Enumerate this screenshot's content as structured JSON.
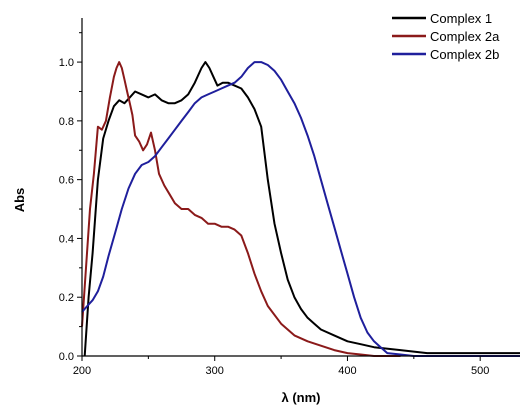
{
  "chart_data": {
    "type": "line",
    "title": "",
    "xlabel": "λ (nm)",
    "ylabel": "Abs",
    "xlim": [
      200,
      530
    ],
    "ylim": [
      0,
      1.15
    ],
    "x_ticks": [
      200,
      300,
      400,
      500
    ],
    "x_tick_labels": [
      "200",
      "300",
      "400",
      "500"
    ],
    "y_ticks": [
      0.0,
      0.2,
      0.4,
      0.6,
      0.8,
      1.0
    ],
    "y_tick_labels": [
      "0.0",
      "0.2",
      "0.4",
      "0.6",
      "0.8",
      "1.0"
    ],
    "grid": false,
    "legend_position": "top-right",
    "series": [
      {
        "name": "Complex 1",
        "color": "#000000",
        "x": [
          202,
          205,
          208,
          212,
          216,
          220,
          224,
          228,
          232,
          236,
          240,
          245,
          250,
          255,
          260,
          265,
          270,
          275,
          280,
          285,
          290,
          293,
          296,
          299,
          302,
          306,
          310,
          315,
          320,
          325,
          330,
          335,
          340,
          345,
          350,
          355,
          360,
          365,
          370,
          375,
          380,
          390,
          400,
          410,
          420,
          440,
          460,
          480,
          500,
          520,
          530
        ],
        "y": [
          0.0,
          0.2,
          0.35,
          0.6,
          0.74,
          0.8,
          0.85,
          0.87,
          0.86,
          0.88,
          0.9,
          0.89,
          0.88,
          0.89,
          0.87,
          0.86,
          0.86,
          0.87,
          0.89,
          0.93,
          0.98,
          1.0,
          0.98,
          0.95,
          0.92,
          0.93,
          0.93,
          0.92,
          0.91,
          0.88,
          0.84,
          0.78,
          0.6,
          0.45,
          0.35,
          0.26,
          0.2,
          0.16,
          0.13,
          0.11,
          0.09,
          0.07,
          0.05,
          0.04,
          0.03,
          0.02,
          0.01,
          0.01,
          0.01,
          0.01,
          0.01
        ]
      },
      {
        "name": "Complex 2a",
        "color": "#8b1a1a",
        "x": [
          200,
          203,
          206,
          209,
          212,
          215,
          218,
          221,
          224,
          226,
          228,
          230,
          232,
          234,
          236,
          238,
          240,
          243,
          246,
          249,
          252,
          255,
          258,
          262,
          266,
          270,
          275,
          280,
          285,
          290,
          295,
          300,
          305,
          310,
          315,
          320,
          325,
          330,
          335,
          340,
          350,
          360,
          370,
          380,
          390,
          400,
          410,
          420,
          430,
          440
        ],
        "y": [
          0.1,
          0.3,
          0.5,
          0.62,
          0.78,
          0.77,
          0.8,
          0.88,
          0.95,
          0.98,
          1.0,
          0.98,
          0.94,
          0.9,
          0.86,
          0.82,
          0.75,
          0.73,
          0.7,
          0.72,
          0.76,
          0.7,
          0.62,
          0.58,
          0.55,
          0.52,
          0.5,
          0.5,
          0.48,
          0.47,
          0.45,
          0.45,
          0.44,
          0.44,
          0.43,
          0.41,
          0.35,
          0.28,
          0.22,
          0.17,
          0.11,
          0.07,
          0.05,
          0.035,
          0.02,
          0.01,
          0.005,
          0.0,
          0.0,
          0.0
        ]
      },
      {
        "name": "Complex 2b",
        "color": "#1f1f9c",
        "x": [
          200,
          204,
          208,
          212,
          216,
          220,
          225,
          230,
          235,
          240,
          245,
          250,
          255,
          260,
          265,
          270,
          275,
          280,
          285,
          290,
          295,
          300,
          305,
          310,
          315,
          320,
          325,
          330,
          335,
          340,
          345,
          350,
          355,
          360,
          365,
          370,
          375,
          380,
          385,
          390,
          395,
          400,
          405,
          410,
          415,
          420,
          425,
          430,
          440,
          450,
          470,
          500,
          530
        ],
        "y": [
          0.15,
          0.17,
          0.19,
          0.22,
          0.27,
          0.34,
          0.42,
          0.5,
          0.57,
          0.62,
          0.65,
          0.66,
          0.68,
          0.71,
          0.74,
          0.77,
          0.8,
          0.83,
          0.86,
          0.88,
          0.89,
          0.9,
          0.91,
          0.92,
          0.93,
          0.95,
          0.98,
          1.0,
          1.0,
          0.99,
          0.97,
          0.94,
          0.9,
          0.86,
          0.81,
          0.75,
          0.68,
          0.6,
          0.52,
          0.44,
          0.36,
          0.28,
          0.2,
          0.13,
          0.08,
          0.05,
          0.03,
          0.01,
          0.005,
          0.0,
          0.0,
          0.0,
          0.0
        ]
      }
    ]
  }
}
